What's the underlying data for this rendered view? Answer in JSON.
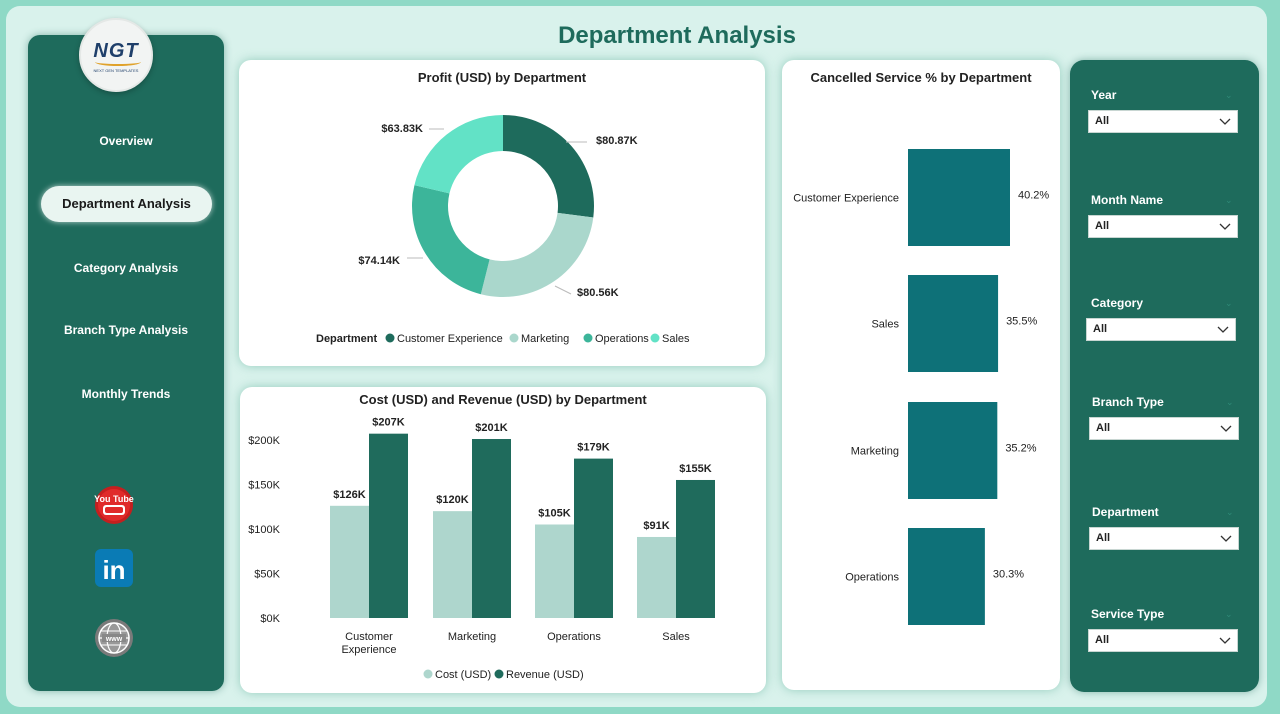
{
  "page": {
    "title": "Department Analysis"
  },
  "logo": {
    "text": "NGT",
    "subtitle": "NEXT GEN TEMPLATES"
  },
  "nav": {
    "items": [
      "Overview",
      "Department Analysis",
      "Category Analysis",
      "Branch Type Analysis",
      "Monthly Trends"
    ],
    "active": "Department Analysis"
  },
  "social": {
    "youtube": "You Tube",
    "linkedin": "in"
  },
  "colors": {
    "dark_green": "#1e6b5c",
    "marketing": "#aad7cc",
    "operations": "#3cb59a",
    "sales": "#62e2c6",
    "cost": "#aed6cd",
    "revenue": "#1f6b5c",
    "cancel_bar": "#0e7178"
  },
  "filters": [
    {
      "label": "Year",
      "value": "All"
    },
    {
      "label": "Month Name",
      "value": "All"
    },
    {
      "label": "Category",
      "value": "All"
    },
    {
      "label": "Branch Type",
      "value": "All"
    },
    {
      "label": "Department",
      "value": "All"
    },
    {
      "label": "Service Type",
      "value": "All"
    }
  ],
  "chart_data": [
    {
      "type": "pie",
      "title": "Profit (USD) by Department",
      "legend_title": "Department",
      "categories": [
        "Customer Experience",
        "Marketing",
        "Operations",
        "Sales"
      ],
      "values": [
        80.87,
        80.56,
        74.14,
        63.83
      ],
      "labels": [
        "$80.87K",
        "$80.56K",
        "$74.14K",
        "$63.83K"
      ],
      "unit": "K USD",
      "donut": true
    },
    {
      "type": "bar",
      "title": "Cost (USD) and Revenue (USD) by Department",
      "categories": [
        "Customer Experience",
        "Marketing",
        "Operations",
        "Sales"
      ],
      "category_lines": [
        [
          "Customer",
          "Experience"
        ],
        [
          "Marketing"
        ],
        [
          "Operations"
        ],
        [
          "Sales"
        ]
      ],
      "series": [
        {
          "name": "Cost (USD)",
          "values": [
            126,
            120,
            105,
            91
          ],
          "labels": [
            "$126K",
            "$120K",
            "$105K",
            "$91K"
          ]
        },
        {
          "name": "Revenue (USD)",
          "values": [
            207,
            201,
            179,
            155
          ],
          "labels": [
            "$207K",
            "$201K",
            "$179K",
            "$155K"
          ]
        }
      ],
      "yticks": [
        0,
        50,
        100,
        150,
        200
      ],
      "ytick_labels": [
        "$0K",
        "$50K",
        "$100K",
        "$150K",
        "$200K"
      ],
      "ylim": [
        0,
        210
      ]
    },
    {
      "type": "bar",
      "orientation": "horizontal",
      "title": "Cancelled Service % by Department",
      "categories": [
        "Customer Experience",
        "Sales",
        "Marketing",
        "Operations"
      ],
      "values": [
        40.2,
        35.5,
        35.2,
        30.3
      ],
      "labels": [
        "40.2%",
        "35.5%",
        "35.2%",
        "30.3%"
      ]
    }
  ]
}
